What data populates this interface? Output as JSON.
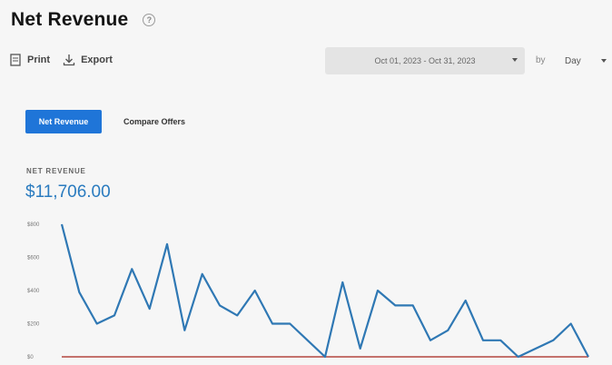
{
  "header": {
    "title": "Net Revenue",
    "help_icon": "?"
  },
  "toolbar": {
    "print_label": "Print",
    "export_label": "Export"
  },
  "filters": {
    "date_range": "Oct 01, 2023 - Oct 31, 2023",
    "by_label": "by",
    "period": "Day"
  },
  "tabs": {
    "active": "Net Revenue",
    "other": "Compare Offers"
  },
  "metric": {
    "label": "NET REVENUE",
    "value": "$11,706.00"
  },
  "colors": {
    "accent": "#1f75d8",
    "primary_line": "#2f78b4",
    "secondary_line": "#b3473f"
  },
  "chart_data": {
    "type": "line",
    "y_ticks": [
      "$0",
      "$200",
      "$400",
      "$600",
      "$800"
    ],
    "ylim": [
      0,
      800
    ],
    "grid": false,
    "series": [
      {
        "values": [
          800,
          390,
          200,
          250,
          530,
          290,
          680,
          160,
          500,
          310,
          250,
          400,
          200,
          200,
          100,
          0,
          450,
          50,
          400,
          310,
          310,
          100,
          160,
          340,
          100,
          100,
          0,
          50,
          100,
          200,
          0
        ]
      },
      {
        "values": [
          0,
          0,
          0,
          0,
          0,
          0,
          0,
          0,
          0,
          0,
          0,
          0,
          0,
          0,
          0,
          0,
          0,
          0,
          0,
          0,
          0,
          0,
          0,
          0,
          0,
          0,
          0,
          0,
          0,
          0,
          0
        ]
      }
    ]
  }
}
